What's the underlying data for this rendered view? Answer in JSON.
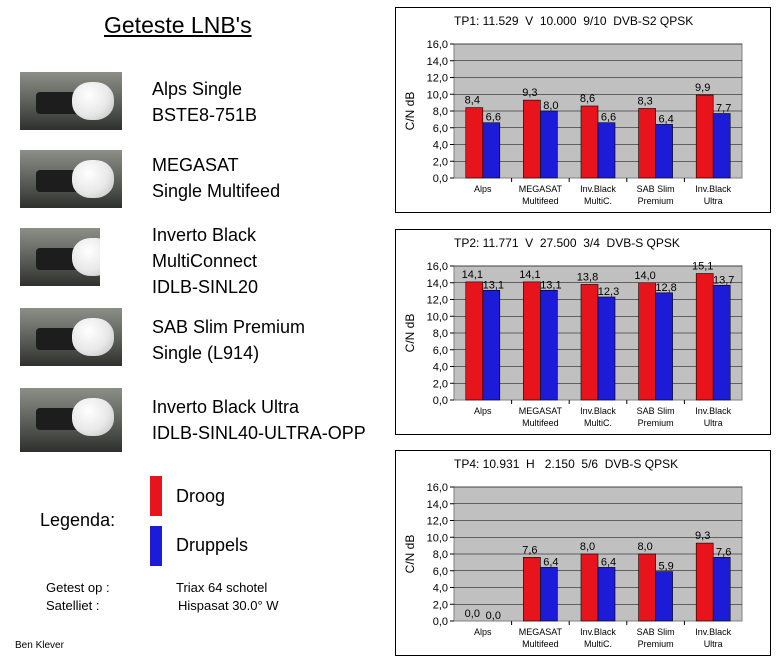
{
  "title": "Geteste LNB's",
  "lnbs": [
    {
      "line1": "Alps Single",
      "line2": "BSTE8-751B",
      "line3": ""
    },
    {
      "line1": "MEGASAT",
      "line2": "Single Multifeed",
      "line3": ""
    },
    {
      "line1": "Inverto Black",
      "line2": "MultiConnect",
      "line3": "IDLB-SINL20"
    },
    {
      "line1": "SAB Slim Premium",
      "line2": "Single (L914)",
      "line3": ""
    },
    {
      "line1": "Inverto Black Ultra",
      "line2": "IDLB-SINL40-ULTRA-OPP",
      "line3": ""
    }
  ],
  "legend": {
    "title": "Legenda:",
    "dry_label": "Droog",
    "wet_label": "Druppels",
    "dry_color": "#e8141c",
    "wet_color": "#1c1cd8"
  },
  "info": {
    "tested_label": "Getest op :",
    "tested_value": "Triax 64 schotel",
    "satellite_label": "Satelliet   :",
    "satellite_value": "Hispasat 30.0° W"
  },
  "author": "Ben Klever",
  "chart_data": [
    {
      "type": "bar",
      "title": "TP1: 11.529  V  10.000  9/10  DVB-S2 QPSK",
      "ylabel": "C/N dB",
      "ylim": [
        0,
        16
      ],
      "ytick_step": 2,
      "categories": [
        [
          "Alps"
        ],
        [
          "MEGASAT",
          "Multifeed"
        ],
        [
          "Inv.Black",
          "MultiC."
        ],
        [
          "SAB Slim",
          "Premium"
        ],
        [
          "Inv.Black",
          "Ultra"
        ]
      ],
      "series": [
        {
          "color": "#e8141c",
          "values": [
            8.4,
            9.3,
            8.6,
            8.3,
            9.9
          ],
          "labels": [
            "8,4",
            "9,3",
            "8,6",
            "8,3",
            "9,9"
          ]
        },
        {
          "color": "#1c1cd8",
          "values": [
            6.6,
            8.0,
            6.6,
            6.4,
            7.7
          ],
          "labels": [
            "6,6",
            "8,0",
            "6,6",
            "6,4",
            "7,7"
          ]
        }
      ]
    },
    {
      "type": "bar",
      "title": "TP2: 11.771  V  27.500  3/4  DVB-S QPSK",
      "ylabel": "C/N dB",
      "ylim": [
        0,
        16
      ],
      "ytick_step": 2,
      "categories": [
        [
          "Alps"
        ],
        [
          "MEGASAT",
          "Multifeed"
        ],
        [
          "Inv.Black",
          "MultiC."
        ],
        [
          "SAB Slim",
          "Premium"
        ],
        [
          "Inv.Black",
          "Ultra"
        ]
      ],
      "series": [
        {
          "color": "#e8141c",
          "values": [
            14.1,
            14.1,
            13.8,
            14.0,
            15.1
          ],
          "labels": [
            "14,1",
            "14,1",
            "13,8",
            "14,0",
            "15,1"
          ]
        },
        {
          "color": "#1c1cd8",
          "values": [
            13.1,
            13.1,
            12.3,
            12.8,
            13.7
          ],
          "labels": [
            "13,1",
            "13,1",
            "12,3",
            "12,8",
            "13,7"
          ]
        }
      ]
    },
    {
      "type": "bar",
      "title": "TP4: 10.931  H   2.150  5/6  DVB-S QPSK",
      "ylabel": "C/N dB",
      "ylim": [
        0,
        16
      ],
      "ytick_step": 2,
      "categories": [
        [
          "Alps"
        ],
        [
          "MEGASAT",
          "Multifeed"
        ],
        [
          "Inv.Black",
          "MultiC."
        ],
        [
          "SAB Slim",
          "Premium"
        ],
        [
          "Inv.Black",
          "Ultra"
        ]
      ],
      "series": [
        {
          "color": "#e8141c",
          "values": [
            0.0,
            7.6,
            8.0,
            8.0,
            9.3
          ],
          "labels": [
            "0,0",
            "7,6",
            "8,0",
            "8,0",
            "9,3"
          ]
        },
        {
          "color": "#1c1cd8",
          "values": [
            0.0,
            6.4,
            6.4,
            5.9,
            7.6
          ],
          "labels": [
            "0,0",
            "6,4",
            "6,4",
            "5,9",
            "7,6"
          ]
        }
      ]
    }
  ]
}
